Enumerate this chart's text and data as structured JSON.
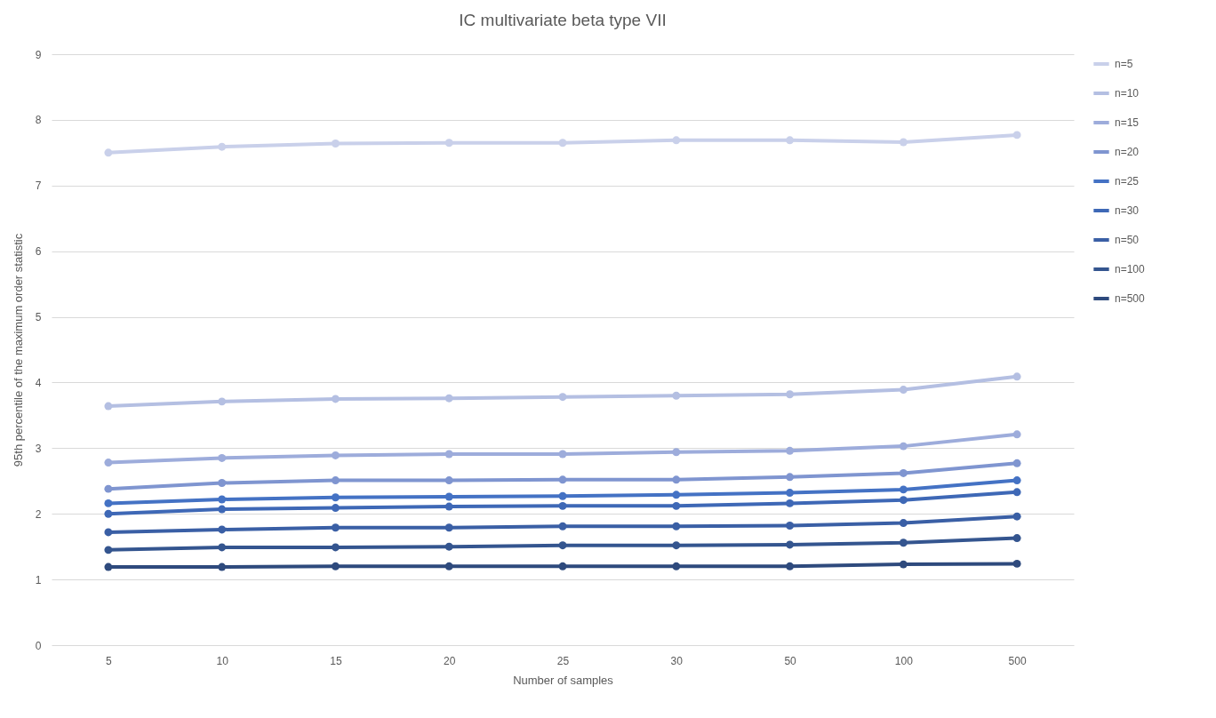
{
  "chart_data": {
    "type": "line",
    "title": "IC multivariate beta type VII",
    "xlabel": "Number of samples",
    "ylabel": "95th percentile of the maximum order statistic",
    "categories": [
      "5",
      "10",
      "15",
      "20",
      "25",
      "30",
      "50",
      "100",
      "500"
    ],
    "ylim": [
      0,
      9
    ],
    "yticks": [
      0,
      1,
      2,
      3,
      4,
      5,
      6,
      7,
      8,
      9
    ],
    "grid": "y",
    "legend": "right",
    "marker": "circle",
    "line_style": "solid",
    "series": [
      {
        "name": "n=5",
        "color": "#c9d0ea",
        "values": [
          7.5,
          7.59,
          7.64,
          7.65,
          7.65,
          7.69,
          7.69,
          7.66,
          7.77
        ]
      },
      {
        "name": "n=10",
        "color": "#b4bfe2",
        "values": [
          3.64,
          3.71,
          3.75,
          3.76,
          3.78,
          3.8,
          3.82,
          3.89,
          4.09
        ]
      },
      {
        "name": "n=15",
        "color": "#9dacdb",
        "values": [
          2.78,
          2.85,
          2.89,
          2.91,
          2.91,
          2.94,
          2.96,
          3.03,
          3.21
        ]
      },
      {
        "name": "n=20",
        "color": "#7f95d0",
        "values": [
          2.38,
          2.47,
          2.51,
          2.51,
          2.52,
          2.52,
          2.56,
          2.62,
          2.77
        ]
      },
      {
        "name": "n=25",
        "color": "#4472c4",
        "values": [
          2.16,
          2.22,
          2.25,
          2.26,
          2.27,
          2.29,
          2.32,
          2.37,
          2.51
        ]
      },
      {
        "name": "n=30",
        "color": "#3e68b6",
        "values": [
          2.0,
          2.07,
          2.09,
          2.11,
          2.12,
          2.12,
          2.16,
          2.21,
          2.33
        ]
      },
      {
        "name": "n=50",
        "color": "#3a5fa5",
        "values": [
          1.72,
          1.76,
          1.79,
          1.79,
          1.81,
          1.81,
          1.82,
          1.86,
          1.96
        ]
      },
      {
        "name": "n=100",
        "color": "#34558f",
        "values": [
          1.45,
          1.49,
          1.49,
          1.5,
          1.52,
          1.52,
          1.53,
          1.56,
          1.63
        ]
      },
      {
        "name": "n=500",
        "color": "#2e4a7d",
        "values": [
          1.19,
          1.19,
          1.2,
          1.2,
          1.2,
          1.2,
          1.2,
          1.23,
          1.24
        ]
      }
    ]
  }
}
